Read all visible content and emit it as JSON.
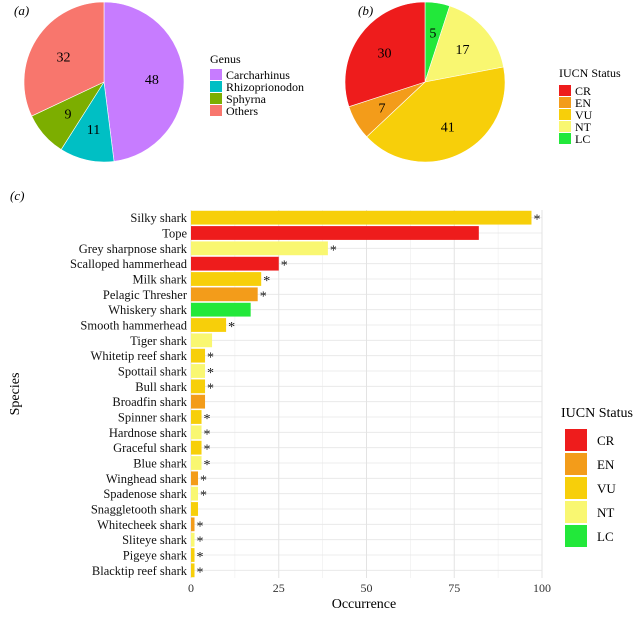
{
  "panels": {
    "a": "(a)",
    "b": "(b)",
    "c": "(c)"
  },
  "colors": {
    "Carcharhinus": "#c77cff",
    "Rhizoprionodon": "#00bfc4",
    "Sphyrna": "#7cae00",
    "Others": "#f8766d",
    "CR": "#ee1c1c",
    "EN": "#f39c1a",
    "VU": "#f7cf0a",
    "NT": "#f9f771",
    "LC": "#22e83a"
  },
  "chart_data": [
    {
      "type": "pie",
      "panel": "(a)",
      "legend_title": "Genus",
      "slices": [
        {
          "label": "Carcharhinus",
          "value": 48
        },
        {
          "label": "Rhizoprionodon",
          "value": 11
        },
        {
          "label": "Sphyrna",
          "value": 9
        },
        {
          "label": "Others",
          "value": 32
        }
      ]
    },
    {
      "type": "pie",
      "panel": "(b)",
      "legend_title": "IUCN Status",
      "slices": [
        {
          "label": "LC",
          "value": 5
        },
        {
          "label": "NT",
          "value": 17
        },
        {
          "label": "VU",
          "value": 41
        },
        {
          "label": "EN",
          "value": 7
        },
        {
          "label": "CR",
          "value": 30
        }
      ],
      "legend_order": [
        "CR",
        "EN",
        "VU",
        "NT",
        "LC"
      ]
    },
    {
      "type": "bar",
      "orientation": "horizontal",
      "panel": "(c)",
      "xlabel": "Occurrence",
      "ylabel": "Species",
      "xlim": [
        0,
        100
      ],
      "xticks": [
        0,
        25,
        50,
        75,
        100
      ],
      "grid": true,
      "legend_title": "IUCN Status",
      "legend_order": [
        "CR",
        "EN",
        "VU",
        "NT",
        "LC"
      ],
      "marker": "*",
      "bars": [
        {
          "species": "Silky shark",
          "value": 97,
          "status": "VU",
          "star": true
        },
        {
          "species": "Tope",
          "value": 82,
          "status": "CR",
          "star": false
        },
        {
          "species": "Grey sharpnose shark",
          "value": 39,
          "status": "NT",
          "star": true
        },
        {
          "species": "Scalloped hammerhead",
          "value": 25,
          "status": "CR",
          "star": true
        },
        {
          "species": "Milk shark",
          "value": 20,
          "status": "VU",
          "star": true
        },
        {
          "species": "Pelagic Thresher",
          "value": 19,
          "status": "EN",
          "star": true
        },
        {
          "species": "Whiskery shark",
          "value": 17,
          "status": "LC",
          "star": false
        },
        {
          "species": "Smooth hammerhead",
          "value": 10,
          "status": "VU",
          "star": true
        },
        {
          "species": "Tiger shark",
          "value": 6,
          "status": "NT",
          "star": false
        },
        {
          "species": "Whitetip reef shark",
          "value": 4,
          "status": "VU",
          "star": true
        },
        {
          "species": "Spottail shark",
          "value": 4,
          "status": "NT",
          "star": true
        },
        {
          "species": "Bull shark",
          "value": 4,
          "status": "VU",
          "star": true
        },
        {
          "species": "Broadfin shark",
          "value": 4,
          "status": "EN",
          "star": false
        },
        {
          "species": "Spinner shark",
          "value": 3,
          "status": "VU",
          "star": true
        },
        {
          "species": "Hardnose shark",
          "value": 3,
          "status": "NT",
          "star": true
        },
        {
          "species": "Graceful shark",
          "value": 3,
          "status": "VU",
          "star": true
        },
        {
          "species": "Blue shark",
          "value": 3,
          "status": "NT",
          "star": true
        },
        {
          "species": "Winghead shark",
          "value": 2,
          "status": "EN",
          "star": true
        },
        {
          "species": "Spadenose shark",
          "value": 2,
          "status": "NT",
          "star": true
        },
        {
          "species": "Snaggletooth shark",
          "value": 2,
          "status": "VU",
          "star": false
        },
        {
          "species": "Whitecheek shark",
          "value": 1,
          "status": "EN",
          "star": true
        },
        {
          "species": "Sliteye shark",
          "value": 1,
          "status": "NT",
          "star": true
        },
        {
          "species": "Pigeye shark",
          "value": 1,
          "status": "VU",
          "star": true
        },
        {
          "species": "Blacktip reef shark",
          "value": 1,
          "status": "VU",
          "star": true
        }
      ]
    }
  ]
}
